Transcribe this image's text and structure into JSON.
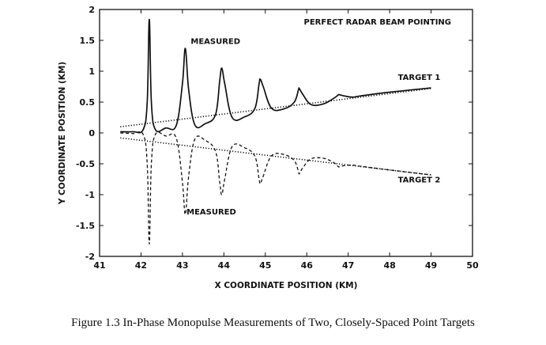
{
  "chart_data": {
    "type": "line",
    "title": "PERFECT RADAR BEAM POINTING",
    "xlabel": "X COORDINATE POSITION (KM)",
    "ylabel": "Y COORDINATE POSITION (KM)",
    "xlim": [
      41,
      50
    ],
    "ylim": [
      -2,
      2
    ],
    "xticks": [
      41,
      42,
      43,
      44,
      45,
      46,
      47,
      48,
      49,
      50
    ],
    "yticks": [
      -2,
      -1.5,
      -1,
      -0.5,
      0,
      0.5,
      1,
      1.5,
      2
    ],
    "grid": false,
    "legend": "none",
    "series": [
      {
        "name": "TARGET 1",
        "style": "dotted",
        "x": [
          41.5,
          49
        ],
        "y": [
          0.1,
          0.72
        ]
      },
      {
        "name": "TARGET 2",
        "style": "dotted",
        "x": [
          41.5,
          49
        ],
        "y": [
          -0.08,
          -0.68
        ]
      },
      {
        "name": "",
        "style": "solid",
        "peaks_x": [
          42.2,
          43.07,
          43.95,
          44.88,
          45.82,
          46.78
        ],
        "peaks_y": [
          1.84,
          1.37,
          1.05,
          0.87,
          0.72,
          0.62
        ],
        "x": [
          41.5,
          41.8,
          42.05,
          42.15,
          42.2,
          42.25,
          42.35,
          42.6,
          42.85,
          43.0,
          43.07,
          43.15,
          43.3,
          43.55,
          43.8,
          43.9,
          43.95,
          44.02,
          44.2,
          44.5,
          44.75,
          44.85,
          44.88,
          44.95,
          45.15,
          45.45,
          45.7,
          45.8,
          45.82,
          45.9,
          46.1,
          46.4,
          46.65,
          46.75,
          46.78,
          46.9,
          47.1,
          47.3,
          48.0,
          49.0
        ],
        "y": [
          0.02,
          0.02,
          0.05,
          0.5,
          1.84,
          0.5,
          0.05,
          0.08,
          0.12,
          0.8,
          1.37,
          0.7,
          0.13,
          0.15,
          0.3,
          0.85,
          1.05,
          0.8,
          0.25,
          0.26,
          0.4,
          0.8,
          0.87,
          0.75,
          0.4,
          0.39,
          0.5,
          0.7,
          0.72,
          0.63,
          0.46,
          0.47,
          0.56,
          0.61,
          0.62,
          0.6,
          0.58,
          0.6,
          0.66,
          0.73
        ]
      },
      {
        "name": "",
        "style": "dashed",
        "peaks_x": [
          42.2,
          43.07,
          43.95,
          44.88,
          45.82,
          46.78
        ],
        "peaks_y": [
          -1.8,
          -1.32,
          -1.0,
          -0.82,
          -0.66,
          -0.55
        ],
        "x": [
          41.5,
          41.8,
          42.05,
          42.15,
          42.2,
          42.25,
          42.35,
          42.6,
          42.85,
          43.0,
          43.07,
          43.15,
          43.3,
          43.55,
          43.8,
          43.9,
          43.95,
          44.02,
          44.2,
          44.5,
          44.75,
          44.85,
          44.88,
          44.95,
          45.15,
          45.45,
          45.7,
          45.8,
          45.82,
          45.9,
          46.1,
          46.4,
          46.65,
          46.75,
          46.78,
          46.9,
          47.1,
          47.3,
          48.0,
          49.0
        ],
        "y": [
          0.0,
          -0.01,
          -0.02,
          -0.5,
          -1.8,
          -0.5,
          -0.02,
          -0.05,
          -0.08,
          -0.8,
          -1.32,
          -0.7,
          -0.1,
          -0.12,
          -0.3,
          -0.8,
          -1.0,
          -0.75,
          -0.22,
          -0.24,
          -0.38,
          -0.75,
          -0.82,
          -0.7,
          -0.37,
          -0.35,
          -0.45,
          -0.63,
          -0.66,
          -0.57,
          -0.42,
          -0.41,
          -0.48,
          -0.54,
          -0.55,
          -0.53,
          -0.52,
          -0.54,
          -0.6,
          -0.68
        ]
      }
    ],
    "annotations": [
      {
        "text": "MEASURED",
        "x": 43.2,
        "y": 1.44
      },
      {
        "text": "MEASURED",
        "x": 43.1,
        "y": -1.32
      },
      {
        "text": "TARGET 1",
        "x": 48.2,
        "y": 0.86
      },
      {
        "text": "TARGET 2",
        "x": 48.2,
        "y": -0.8
      }
    ]
  },
  "caption": "Figure 1.3 In-Phase Monopulse Measurements of Two, Closely-Spaced Point Targets"
}
